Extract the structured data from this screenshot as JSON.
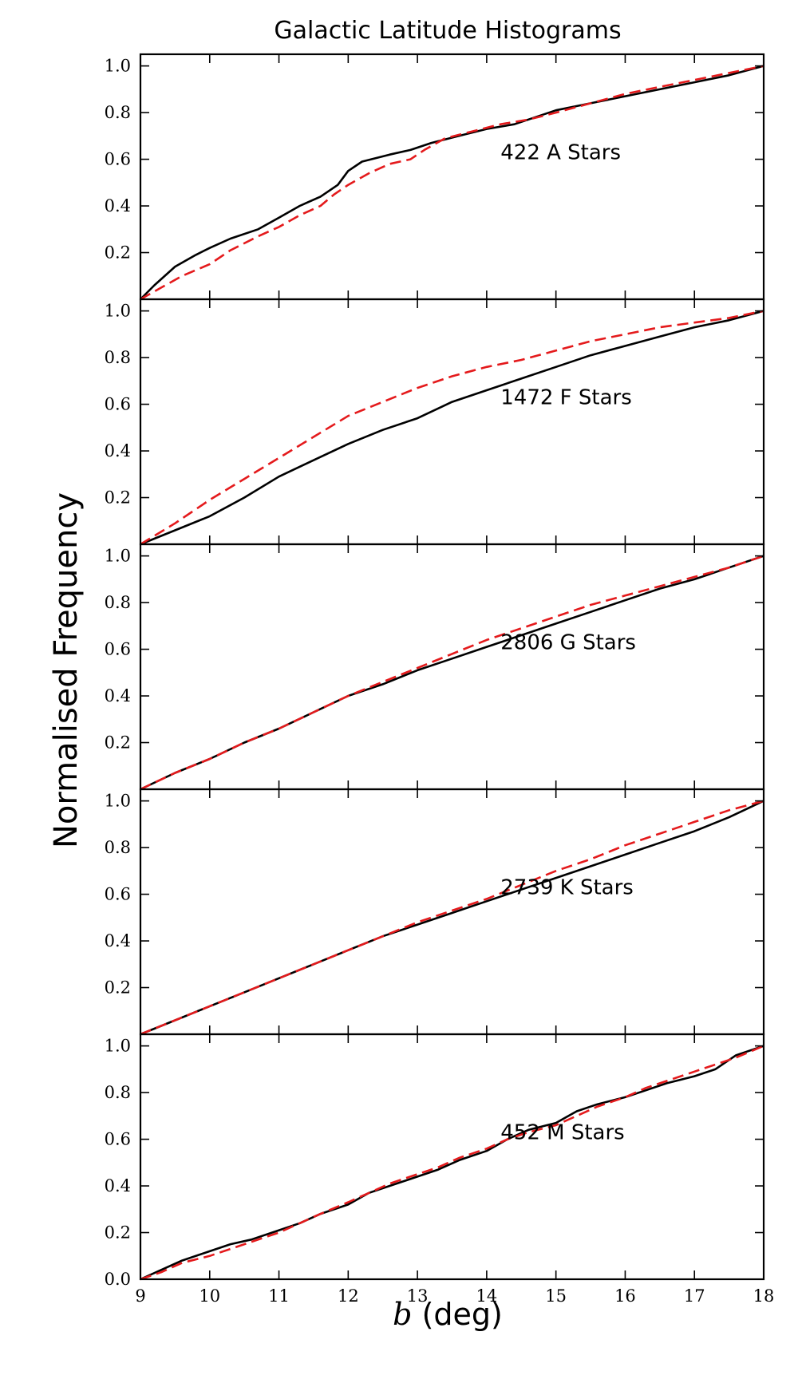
{
  "figure": {
    "title": "Galactic Latitude Histograms",
    "ylabel": "Normalised Frequency",
    "xlabel_var": "b",
    "xlabel_unit": " (deg)"
  },
  "colors": {
    "observed": "#000000",
    "model": "#e41a1c"
  },
  "chart_data": [
    {
      "type": "line",
      "annotation": "422 A Stars",
      "xlim": [
        9,
        18
      ],
      "ylim": [
        0,
        1.05
      ],
      "yticks": [
        "0.2",
        "0.4",
        "0.6",
        "0.8",
        "1.0"
      ],
      "xticks": [
        9,
        10,
        11,
        12,
        13,
        14,
        15,
        16,
        17,
        18
      ],
      "series": [
        {
          "style": "solid",
          "x": [
            9.0,
            9.2,
            9.5,
            9.8,
            10.0,
            10.3,
            10.7,
            11.0,
            11.3,
            11.6,
            11.85,
            12.0,
            12.2,
            12.6,
            12.9,
            13.2,
            13.6,
            14.0,
            14.4,
            15.0,
            15.5,
            16.0,
            16.5,
            17.0,
            17.5,
            18.0
          ],
          "y": [
            0.0,
            0.06,
            0.14,
            0.19,
            0.22,
            0.26,
            0.3,
            0.35,
            0.4,
            0.44,
            0.49,
            0.55,
            0.59,
            0.62,
            0.64,
            0.67,
            0.7,
            0.73,
            0.75,
            0.81,
            0.84,
            0.87,
            0.9,
            0.93,
            0.96,
            1.0
          ]
        },
        {
          "style": "dashed",
          "x": [
            9.0,
            9.3,
            9.6,
            10.0,
            10.3,
            10.7,
            11.0,
            11.3,
            11.6,
            11.8,
            12.0,
            12.3,
            12.6,
            12.9,
            13.1,
            13.4,
            13.8,
            14.2,
            14.6,
            15.0,
            15.5,
            16.0,
            16.5,
            17.0,
            17.5,
            18.0
          ],
          "y": [
            0.0,
            0.05,
            0.1,
            0.15,
            0.21,
            0.27,
            0.31,
            0.36,
            0.4,
            0.45,
            0.49,
            0.54,
            0.58,
            0.6,
            0.64,
            0.69,
            0.72,
            0.75,
            0.77,
            0.8,
            0.84,
            0.88,
            0.91,
            0.94,
            0.97,
            1.0
          ]
        }
      ]
    },
    {
      "type": "line",
      "annotation": "1472 F Stars",
      "xlim": [
        9,
        18
      ],
      "ylim": [
        0,
        1.05
      ],
      "yticks": [
        "0.2",
        "0.4",
        "0.6",
        "0.8",
        "1.0"
      ],
      "xticks": [
        9,
        10,
        11,
        12,
        13,
        14,
        15,
        16,
        17,
        18
      ],
      "series": [
        {
          "style": "solid",
          "x": [
            9.0,
            9.5,
            10.0,
            10.5,
            11.0,
            11.5,
            12.0,
            12.5,
            13.0,
            13.5,
            14.0,
            14.5,
            15.0,
            15.5,
            16.0,
            16.5,
            17.0,
            17.5,
            18.0
          ],
          "y": [
            0.0,
            0.06,
            0.12,
            0.2,
            0.29,
            0.36,
            0.43,
            0.49,
            0.54,
            0.61,
            0.66,
            0.71,
            0.76,
            0.81,
            0.85,
            0.89,
            0.93,
            0.96,
            1.0
          ]
        },
        {
          "style": "dashed",
          "x": [
            9.0,
            9.5,
            10.0,
            10.5,
            11.0,
            11.5,
            12.0,
            12.5,
            13.0,
            13.5,
            14.0,
            14.5,
            15.0,
            15.5,
            16.0,
            16.5,
            17.0,
            17.5,
            18.0
          ],
          "y": [
            0.0,
            0.09,
            0.19,
            0.28,
            0.37,
            0.46,
            0.55,
            0.61,
            0.67,
            0.72,
            0.76,
            0.79,
            0.83,
            0.87,
            0.9,
            0.93,
            0.95,
            0.97,
            1.0
          ]
        }
      ]
    },
    {
      "type": "line",
      "annotation": "2806 G Stars",
      "xlim": [
        9,
        18
      ],
      "ylim": [
        0,
        1.05
      ],
      "yticks": [
        "0.2",
        "0.4",
        "0.6",
        "0.8",
        "1.0"
      ],
      "xticks": [
        9,
        10,
        11,
        12,
        13,
        14,
        15,
        16,
        17,
        18
      ],
      "series": [
        {
          "style": "solid",
          "x": [
            9.0,
            9.5,
            10.0,
            10.5,
            11.0,
            11.5,
            12.0,
            12.5,
            13.0,
            13.5,
            14.0,
            14.5,
            15.0,
            15.5,
            16.0,
            16.5,
            17.0,
            17.5,
            18.0
          ],
          "y": [
            0.0,
            0.07,
            0.13,
            0.2,
            0.26,
            0.33,
            0.4,
            0.45,
            0.51,
            0.56,
            0.61,
            0.66,
            0.71,
            0.76,
            0.81,
            0.86,
            0.9,
            0.95,
            1.0
          ]
        },
        {
          "style": "dashed",
          "x": [
            9.0,
            9.5,
            10.0,
            10.5,
            11.0,
            11.5,
            12.0,
            12.5,
            13.0,
            13.5,
            14.0,
            14.5,
            15.0,
            15.5,
            16.0,
            16.5,
            17.0,
            17.5,
            18.0
          ],
          "y": [
            0.0,
            0.07,
            0.13,
            0.2,
            0.26,
            0.33,
            0.4,
            0.46,
            0.52,
            0.58,
            0.64,
            0.69,
            0.74,
            0.79,
            0.83,
            0.87,
            0.91,
            0.95,
            1.0
          ]
        }
      ]
    },
    {
      "type": "line",
      "annotation": "2739 K Stars",
      "xlim": [
        9,
        18
      ],
      "ylim": [
        0,
        1.05
      ],
      "yticks": [
        "0.2",
        "0.4",
        "0.6",
        "0.8",
        "1.0"
      ],
      "xticks": [
        9,
        10,
        11,
        12,
        13,
        14,
        15,
        16,
        17,
        18
      ],
      "series": [
        {
          "style": "solid",
          "x": [
            9.0,
            9.5,
            10.0,
            10.5,
            11.0,
            11.5,
            12.0,
            12.5,
            13.0,
            13.5,
            14.0,
            14.5,
            15.0,
            15.5,
            16.0,
            16.5,
            17.0,
            17.5,
            18.0
          ],
          "y": [
            0.0,
            0.06,
            0.12,
            0.18,
            0.24,
            0.3,
            0.36,
            0.42,
            0.47,
            0.52,
            0.57,
            0.62,
            0.67,
            0.72,
            0.77,
            0.82,
            0.87,
            0.93,
            1.0
          ]
        },
        {
          "style": "dashed",
          "x": [
            9.0,
            9.5,
            10.0,
            10.5,
            11.0,
            11.5,
            12.0,
            12.5,
            13.0,
            13.5,
            14.0,
            14.5,
            15.0,
            15.5,
            16.0,
            16.5,
            17.0,
            17.5,
            18.0
          ],
          "y": [
            0.0,
            0.06,
            0.12,
            0.18,
            0.24,
            0.3,
            0.36,
            0.42,
            0.48,
            0.53,
            0.58,
            0.64,
            0.7,
            0.75,
            0.81,
            0.86,
            0.91,
            0.96,
            1.0
          ]
        }
      ]
    },
    {
      "type": "line",
      "annotation": "452 M Stars",
      "xlim": [
        9,
        18
      ],
      "ylim": [
        0,
        1.05
      ],
      "yticks": [
        "0.0",
        "0.2",
        "0.4",
        "0.6",
        "0.8",
        "1.0"
      ],
      "xticks": [
        9,
        10,
        11,
        12,
        13,
        14,
        15,
        16,
        17,
        18
      ],
      "series": [
        {
          "style": "solid",
          "x": [
            9.0,
            9.3,
            9.6,
            10.0,
            10.3,
            10.6,
            11.0,
            11.3,
            11.6,
            12.0,
            12.3,
            12.6,
            13.0,
            13.3,
            13.6,
            14.0,
            14.3,
            14.6,
            15.0,
            15.3,
            15.6,
            16.0,
            16.3,
            16.6,
            17.0,
            17.3,
            17.6,
            18.0
          ],
          "y": [
            0.0,
            0.04,
            0.08,
            0.12,
            0.15,
            0.17,
            0.21,
            0.24,
            0.28,
            0.32,
            0.37,
            0.4,
            0.44,
            0.47,
            0.51,
            0.55,
            0.6,
            0.64,
            0.67,
            0.72,
            0.75,
            0.78,
            0.81,
            0.84,
            0.87,
            0.9,
            0.96,
            1.0
          ]
        },
        {
          "style": "dashed",
          "x": [
            9.0,
            9.3,
            9.6,
            10.0,
            10.3,
            10.6,
            11.0,
            11.3,
            11.6,
            12.0,
            12.3,
            12.6,
            13.0,
            13.3,
            13.6,
            14.0,
            14.3,
            14.6,
            15.0,
            15.3,
            15.6,
            16.0,
            16.3,
            16.6,
            17.0,
            17.3,
            17.6,
            18.0
          ],
          "y": [
            0.0,
            0.03,
            0.07,
            0.1,
            0.13,
            0.16,
            0.2,
            0.24,
            0.28,
            0.33,
            0.37,
            0.41,
            0.45,
            0.48,
            0.52,
            0.56,
            0.6,
            0.63,
            0.66,
            0.7,
            0.74,
            0.78,
            0.82,
            0.85,
            0.89,
            0.92,
            0.95,
            1.0
          ]
        }
      ]
    }
  ]
}
